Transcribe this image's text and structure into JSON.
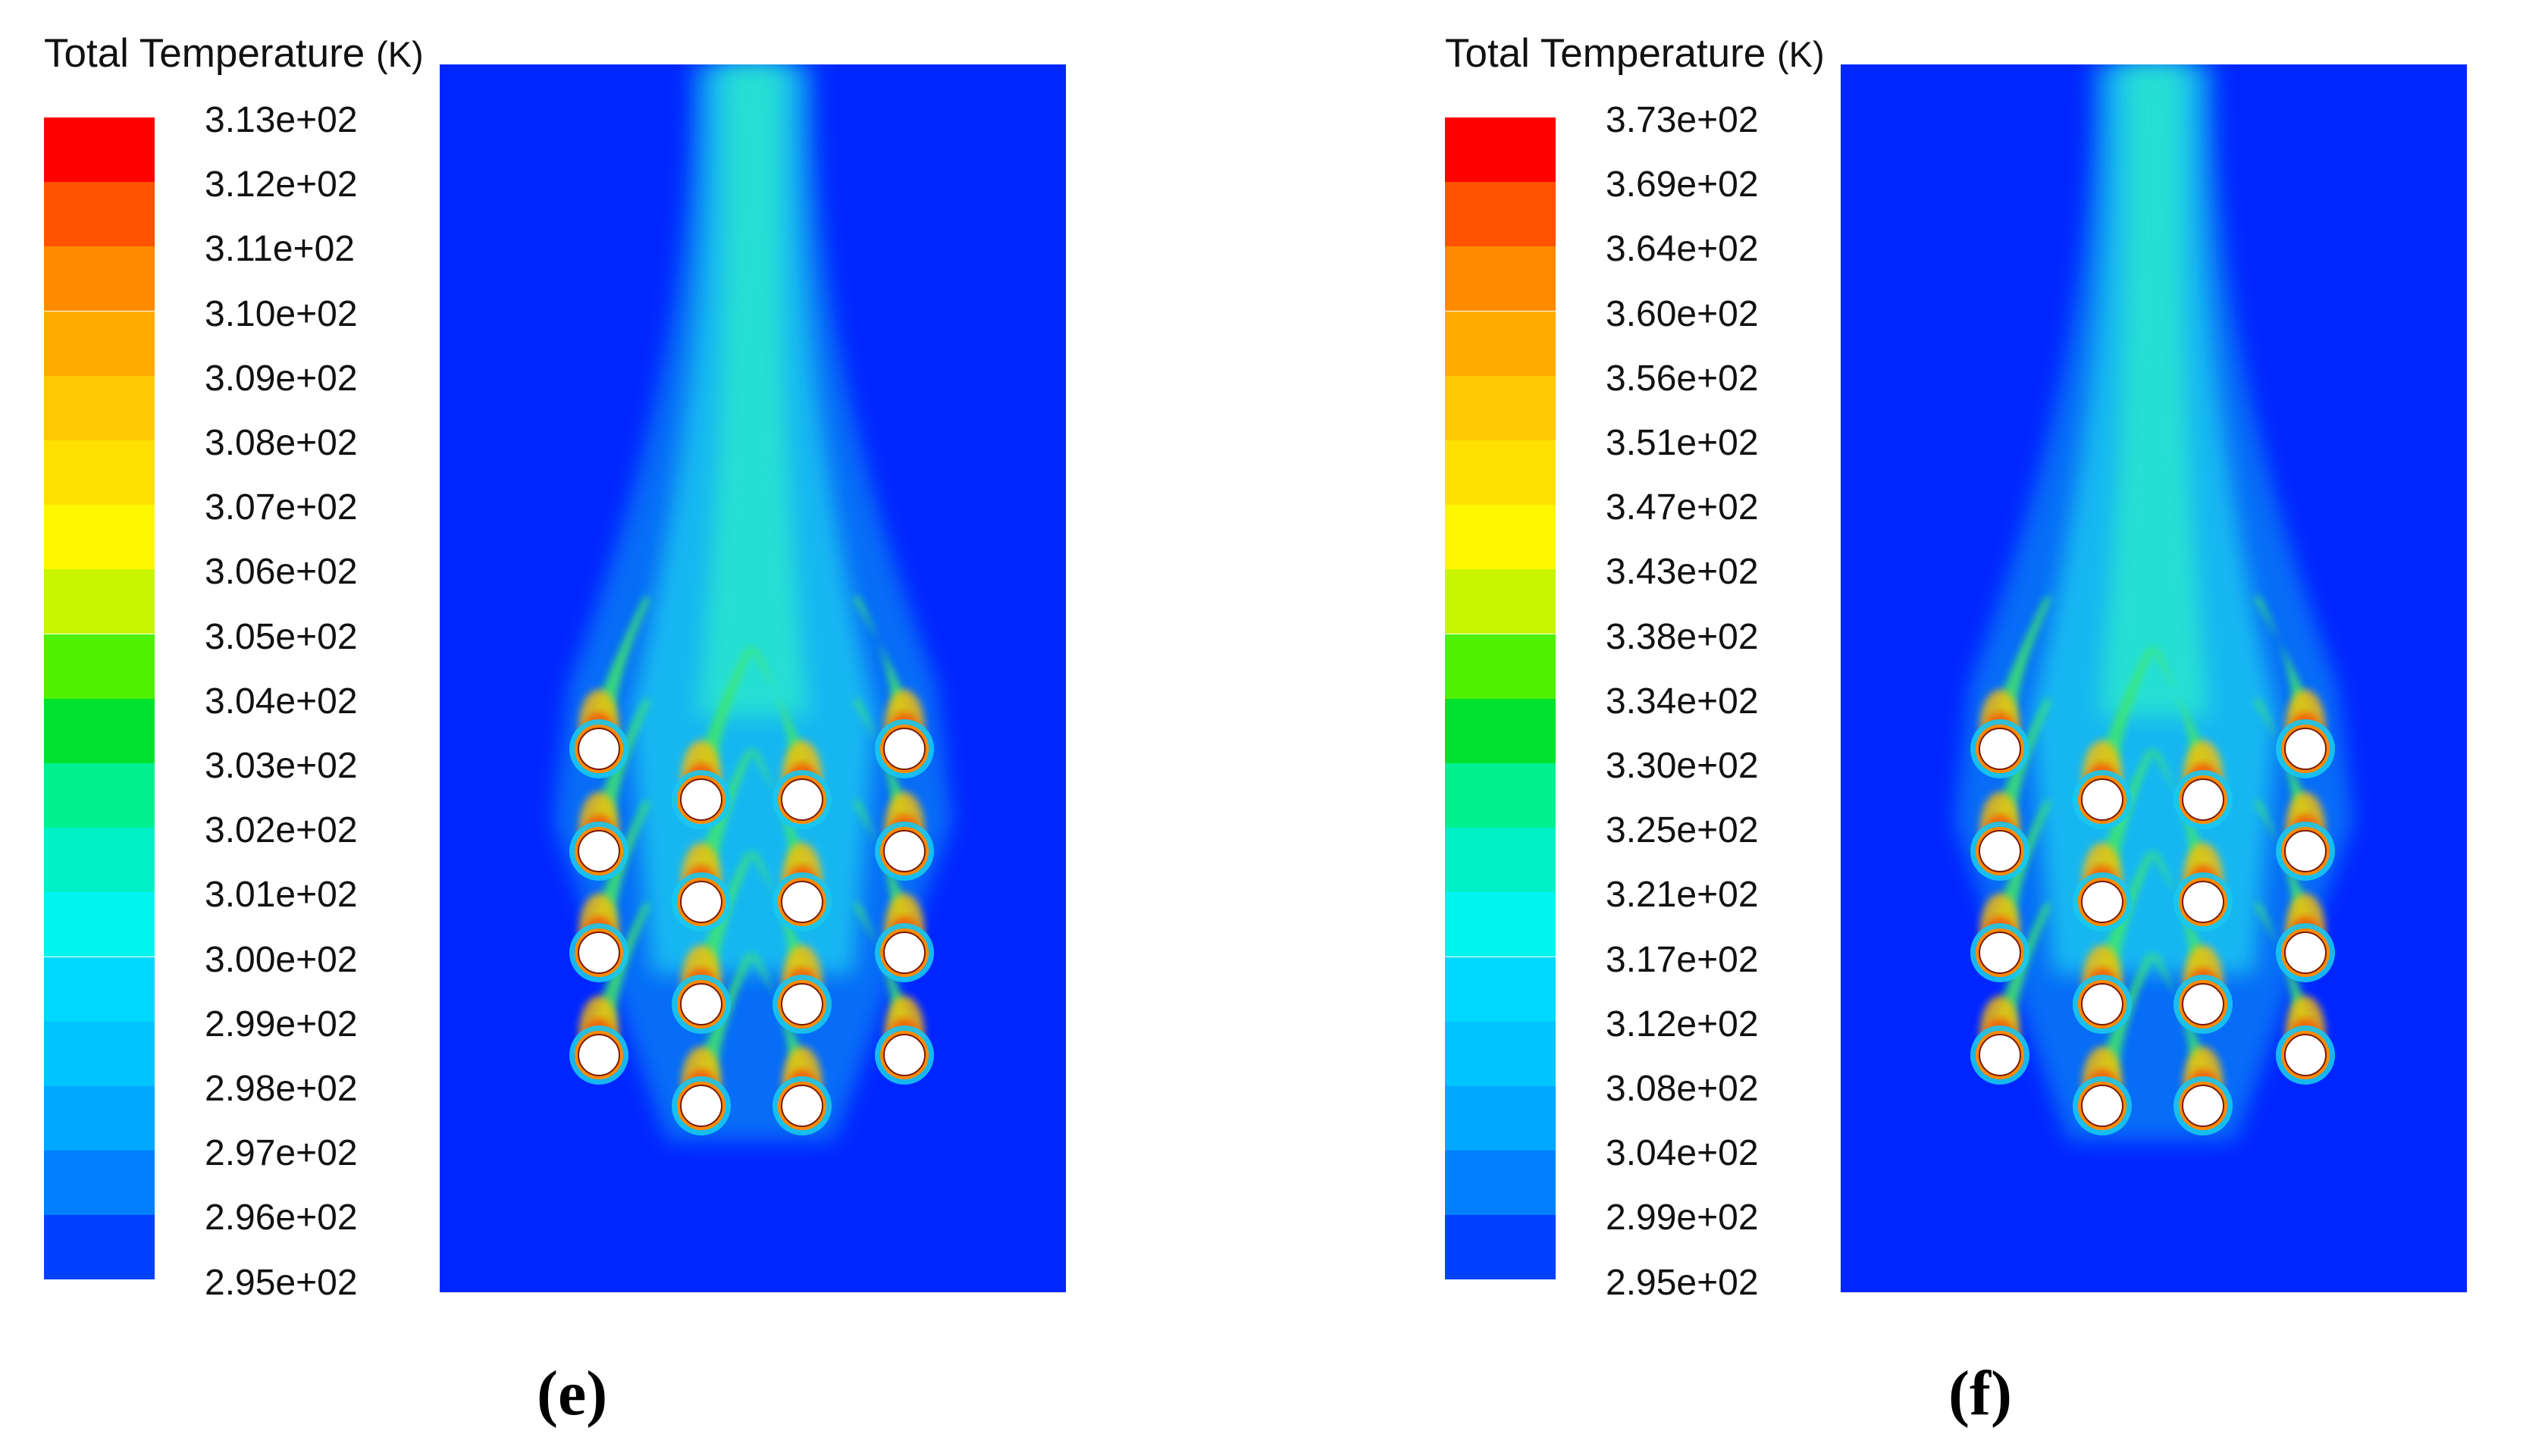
{
  "chart_data": [
    {
      "type": "heatmap",
      "panel": "(e)",
      "title": "Total Temperature",
      "unit": "(K)",
      "colorbar": {
        "levels": [
          "3.13e+02",
          "3.12e+02",
          "3.11e+02",
          "3.10e+02",
          "3.09e+02",
          "3.08e+02",
          "3.07e+02",
          "3.06e+02",
          "3.05e+02",
          "3.04e+02",
          "3.03e+02",
          "3.02e+02",
          "3.01e+02",
          "3.00e+02",
          "2.99e+02",
          "2.98e+02",
          "2.97e+02",
          "2.96e+02",
          "2.95e+02"
        ],
        "range": [
          295,
          313
        ],
        "colors": [
          "#ff0000",
          "#ff5200",
          "#ff8a00",
          "#ffab00",
          "#ffc800",
          "#ffe000",
          "#fff700",
          "#c8f500",
          "#4ff000",
          "#00e130",
          "#00f090",
          "#00f0c8",
          "#00f5f0",
          "#00d8ff",
          "#00c4ff",
          "#00a8ff",
          "#0080ff",
          "#0040ff"
        ]
      },
      "tube_count": 16
    },
    {
      "type": "heatmap",
      "panel": "(f)",
      "title": "Total Temperature",
      "unit": "(K)",
      "colorbar": {
        "levels": [
          "3.73e+02",
          "3.69e+02",
          "3.64e+02",
          "3.60e+02",
          "3.56e+02",
          "3.51e+02",
          "3.47e+02",
          "3.43e+02",
          "3.38e+02",
          "3.34e+02",
          "3.30e+02",
          "3.25e+02",
          "3.21e+02",
          "3.17e+02",
          "3.12e+02",
          "3.08e+02",
          "3.04e+02",
          "2.99e+02",
          "2.95e+02"
        ],
        "range": [
          295,
          373
        ],
        "colors": [
          "#ff0000",
          "#ff5200",
          "#ff8a00",
          "#ffab00",
          "#ffc800",
          "#ffe000",
          "#fff700",
          "#c8f500",
          "#4ff000",
          "#00e130",
          "#00f090",
          "#00f0c8",
          "#00f5f0",
          "#00d8ff",
          "#00c4ff",
          "#00a8ff",
          "#0080ff",
          "#0040ff"
        ]
      },
      "tube_count": 16
    }
  ]
}
